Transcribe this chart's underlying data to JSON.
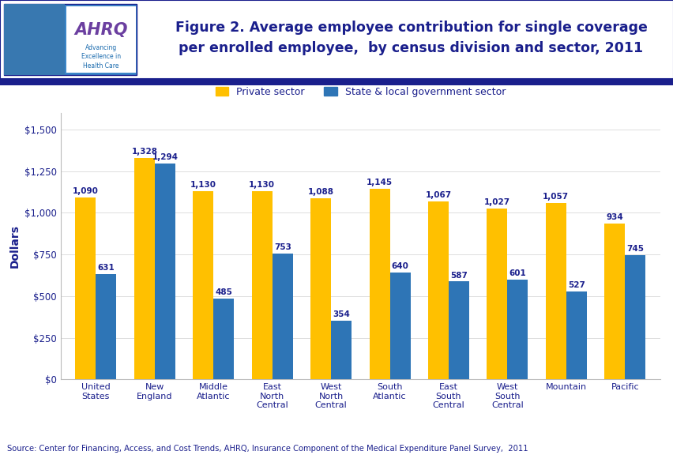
{
  "title_line1": "Figure 2. Average employee contribution for single coverage",
  "title_line2": "per enrolled employee,  by census division and sector, 2011",
  "categories": [
    "United\nStates",
    "New\nEngland",
    "Middle\nAtlantic",
    "East\nNorth\nCentral",
    "West\nNorth\nCentral",
    "South\nAtlantic",
    "East\nSouth\nCentral",
    "West\nSouth\nCentral",
    "Mountain",
    "Pacific"
  ],
  "private_values": [
    1090,
    1328,
    1130,
    1130,
    1088,
    1145,
    1067,
    1027,
    1057,
    934
  ],
  "govt_values": [
    631,
    1294,
    485,
    753,
    354,
    640,
    587,
    601,
    527,
    745
  ],
  "private_color": "#FFC000",
  "govt_color": "#2E75B6",
  "ylabel": "Dollars",
  "ylim": [
    0,
    1600
  ],
  "yticks": [
    0,
    250,
    500,
    750,
    1000,
    1250,
    1500
  ],
  "ytick_labels": [
    "$0",
    "$250",
    "$500",
    "$750",
    "$1,000",
    "$1,250",
    "$1,500"
  ],
  "legend_private": "Private sector",
  "legend_govt": "State & local government sector",
  "source_text": "Source: Center for Financing, Access, and Cost Trends, AHRQ, Insurance Component of the Medical Expenditure Panel Survey,  2011",
  "top_bar_color": "#1A1F8C",
  "title_color": "#1A1F8C",
  "axis_label_color": "#1A1F8C",
  "tick_label_color": "#1A1F8C",
  "value_label_color": "#1A1F8C",
  "source_color": "#1A1F8C",
  "bar_width": 0.35,
  "fig_bg_color": "#FFFFFF",
  "fig_width": 8.53,
  "fig_height": 5.76,
  "fig_dpi": 100
}
